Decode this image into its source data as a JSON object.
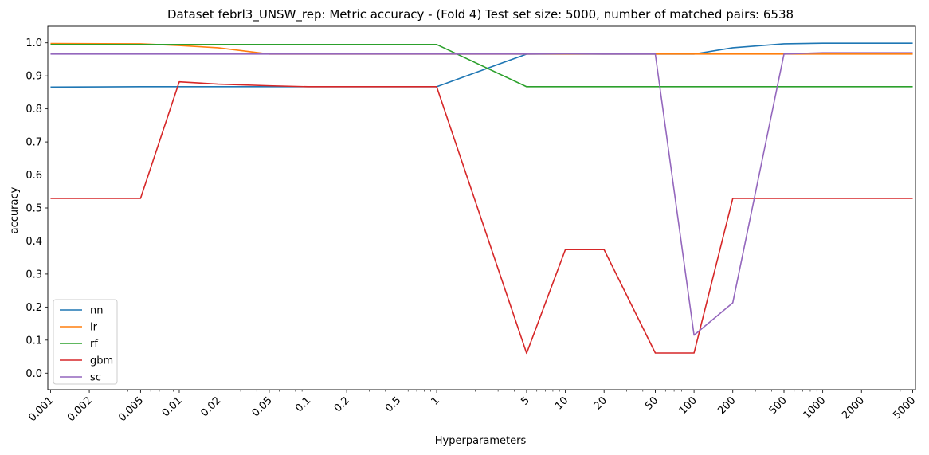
{
  "chart_data": {
    "type": "line",
    "title": "Dataset febrl3_UNSW_rep: Metric accuracy - (Fold 4) Test set size: 5000, number of matched pairs: 6538",
    "xlabel": "Hyperparameters",
    "ylabel": "accuracy",
    "xscale": "log",
    "x": [
      0.001,
      0.005,
      0.01,
      0.02,
      0.05,
      0.1,
      1,
      5,
      10,
      20,
      50,
      100,
      200,
      500,
      1000,
      5000
    ],
    "xticks": [
      0.001,
      0.002,
      0.005,
      0.01,
      0.02,
      0.05,
      0.1,
      0.2,
      0.5,
      1,
      5,
      10,
      20,
      50,
      100,
      200,
      500,
      1000,
      2000,
      5000
    ],
    "xtick_labels": [
      "0.001",
      "0.002",
      "0.005",
      "0.01",
      "0.02",
      "0.05",
      "0.1",
      "0.2",
      "0.5",
      "1",
      "5",
      "10",
      "20",
      "50",
      "100",
      "200",
      "500",
      "1000",
      "2000",
      "5000"
    ],
    "yticks": [
      0.0,
      0.1,
      0.2,
      0.3,
      0.4,
      0.5,
      0.6,
      0.7,
      0.8,
      0.9,
      1.0
    ],
    "ytick_labels": [
      "0.0",
      "0.1",
      "0.2",
      "0.3",
      "0.4",
      "0.5",
      "0.6",
      "0.7",
      "0.8",
      "0.9",
      "1.0"
    ],
    "ylim": [
      -0.05,
      1.05
    ],
    "grid": false,
    "legend_position": "bottom-left",
    "series": [
      {
        "name": "nn",
        "color": "#1f77b4",
        "values": [
          0.866,
          0.867,
          0.867,
          0.867,
          0.867,
          0.867,
          0.867,
          0.966,
          0.966,
          0.966,
          0.966,
          0.966,
          0.985,
          0.997,
          0.999,
          0.999
        ]
      },
      {
        "name": "lr",
        "color": "#ff7f0e",
        "values": [
          0.998,
          0.997,
          0.992,
          0.985,
          0.966,
          0.966,
          0.966,
          0.966,
          0.966,
          0.966,
          0.966,
          0.966,
          0.966,
          0.966,
          0.966,
          0.966
        ]
      },
      {
        "name": "rf",
        "color": "#2ca02c",
        "values": [
          0.995,
          0.995,
          0.995,
          0.995,
          0.995,
          0.995,
          0.995,
          0.867,
          0.867,
          0.867,
          0.867,
          0.867,
          0.867,
          0.867,
          0.867,
          0.867
        ]
      },
      {
        "name": "gbm",
        "color": "#d62728",
        "values": [
          0.529,
          0.529,
          0.882,
          0.875,
          0.87,
          0.867,
          0.867,
          0.06,
          0.374,
          0.374,
          0.061,
          0.061,
          0.529,
          0.529,
          0.529,
          0.529
        ]
      },
      {
        "name": "sc",
        "color": "#9467bd",
        "values": [
          0.966,
          0.966,
          0.966,
          0.966,
          0.966,
          0.966,
          0.966,
          0.966,
          0.967,
          0.966,
          0.966,
          0.115,
          0.213,
          0.966,
          0.97,
          0.97
        ]
      }
    ]
  }
}
